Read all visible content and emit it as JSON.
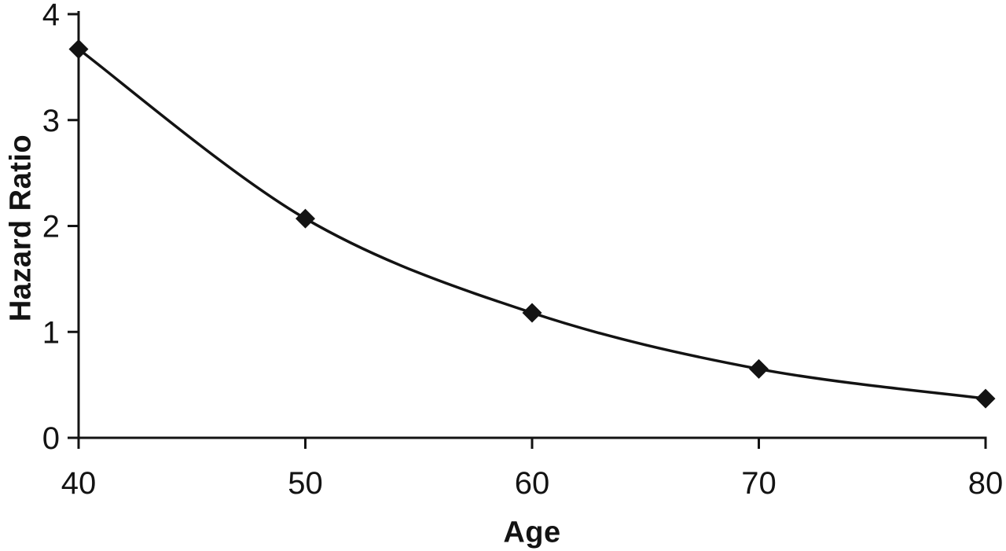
{
  "chart_data": {
    "type": "line",
    "title": "",
    "xlabel": "Age",
    "ylabel": "Hazard Ratio",
    "x": [
      40,
      50,
      60,
      70,
      80
    ],
    "series": [
      {
        "name": "Hazard Ratio",
        "values": [
          3.67,
          2.07,
          1.18,
          0.65,
          0.37
        ]
      }
    ],
    "xlim": [
      40,
      80
    ],
    "ylim": [
      0,
      4
    ],
    "xticks": [
      40,
      50,
      60,
      70,
      80
    ],
    "yticks": [
      0,
      1,
      2,
      3,
      4
    ],
    "grid": false,
    "legend": false,
    "marker": "diamond",
    "smooth": true,
    "line_color": "#131313",
    "marker_color": "#131313",
    "axis_color": "#131313",
    "background_color": "#ffffff"
  }
}
